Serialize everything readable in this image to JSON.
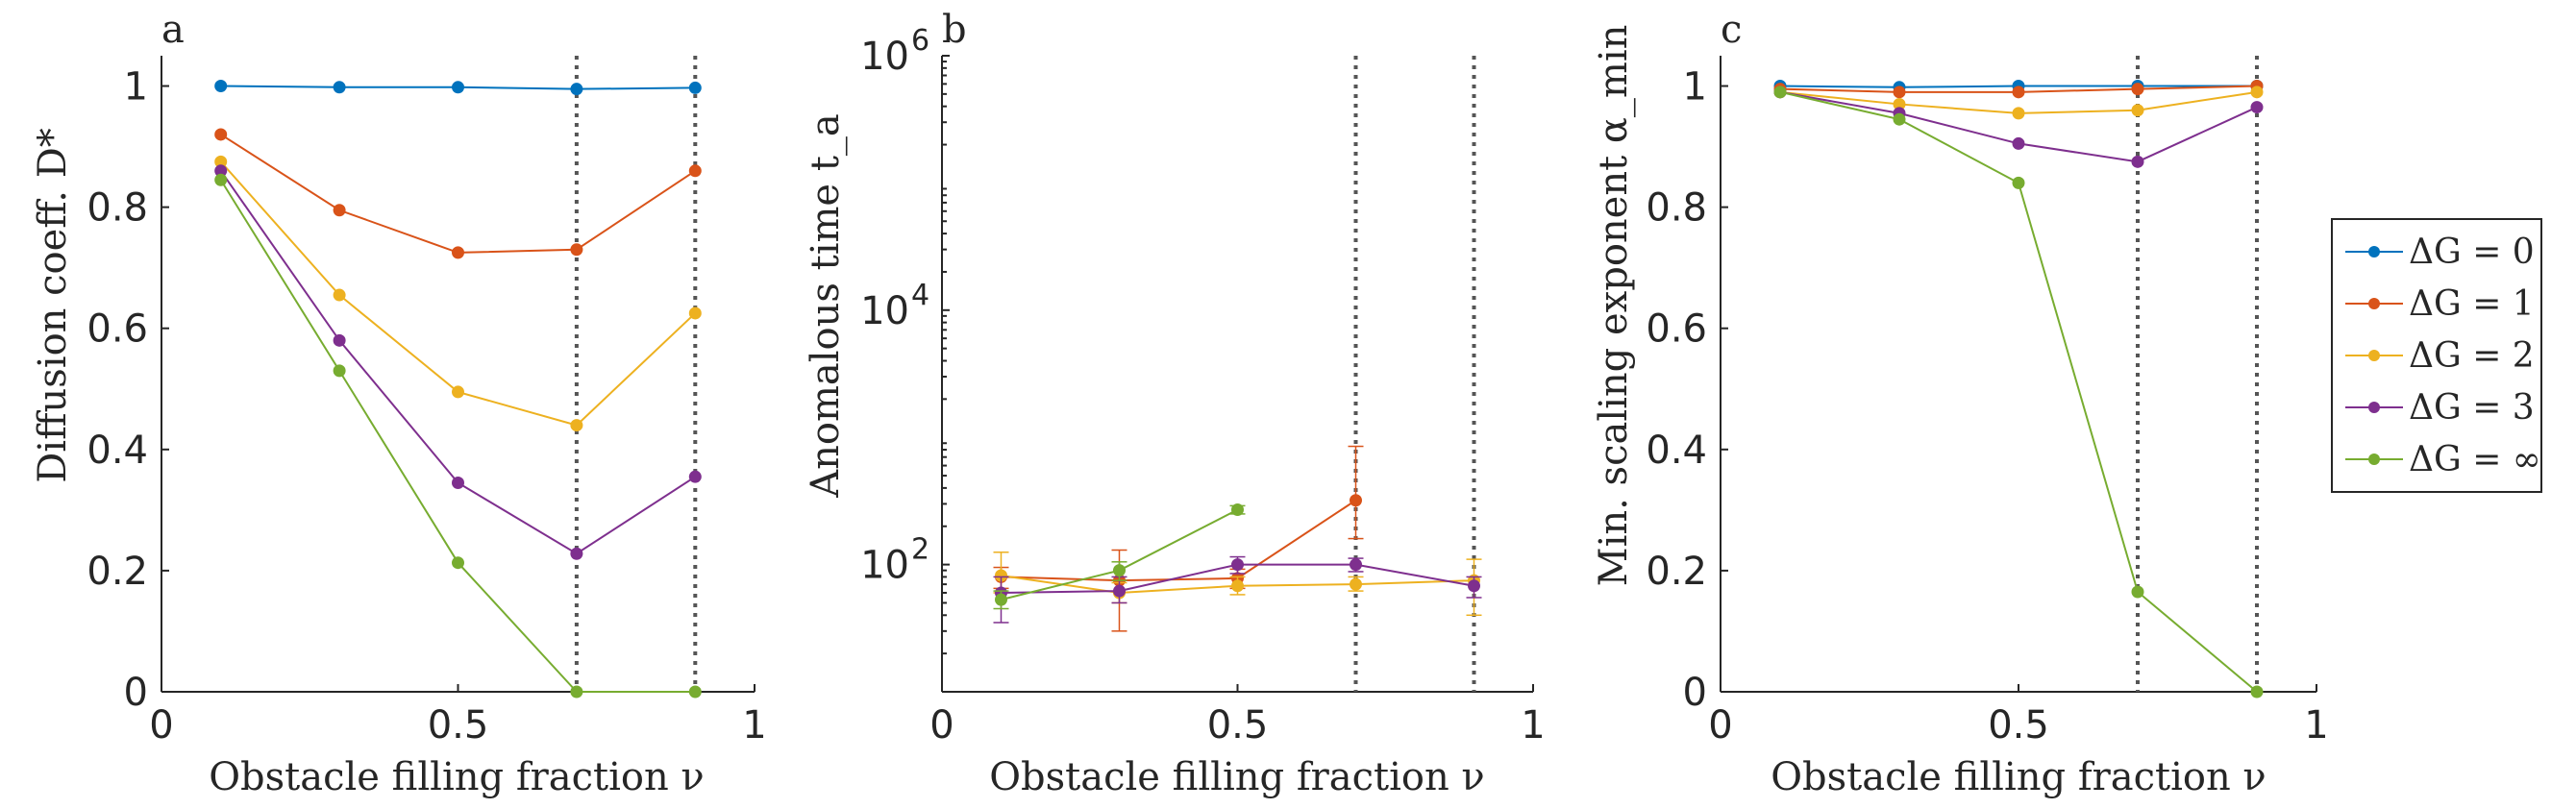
{
  "colors": {
    "dg0": "#0072BD",
    "dg1": "#D95319",
    "dg2": "#EDB120",
    "dg3": "#7E2F8E",
    "dginf": "#77AC30",
    "axis": "#262626",
    "vline": "#555555"
  },
  "legend": {
    "entries": [
      "ΔG = 0",
      "ΔG = 1",
      "ΔG = 2",
      "ΔG = 3",
      "ΔG = ∞"
    ]
  },
  "chart_data": [
    {
      "panel": "a",
      "type": "line",
      "xlabel": "Obstacle filling fraction ν",
      "ylabel": "Diffusion coeff. D*",
      "xlim": [
        0,
        1
      ],
      "ylim": [
        0,
        1.05
      ],
      "yscale": "linear",
      "xticks": [
        0,
        0.5,
        1
      ],
      "xtick_labels": [
        "0",
        "0.5",
        "1"
      ],
      "yticks": [
        0,
        0.2,
        0.4,
        0.6,
        0.8,
        1
      ],
      "ytick_labels": [
        "0",
        "0.2",
        "0.4",
        "0.6",
        "0.8",
        "1"
      ],
      "vlines": [
        0.7,
        0.9
      ],
      "x": [
        0.1,
        0.3,
        0.5,
        0.7,
        0.9
      ],
      "series": [
        {
          "name": "ΔG = 0",
          "color_key": "dg0",
          "values": [
            1.0,
            0.998,
            0.998,
            0.995,
            0.997
          ]
        },
        {
          "name": "ΔG = 1",
          "color_key": "dg1",
          "values": [
            0.92,
            0.795,
            0.725,
            0.73,
            0.86
          ]
        },
        {
          "name": "ΔG = 2",
          "color_key": "dg2",
          "values": [
            0.875,
            0.655,
            0.495,
            0.44,
            0.625
          ]
        },
        {
          "name": "ΔG = 3",
          "color_key": "dg3",
          "values": [
            0.86,
            0.58,
            0.345,
            0.228,
            0.355
          ]
        },
        {
          "name": "ΔG = ∞",
          "color_key": "dginf",
          "values": [
            0.845,
            0.53,
            0.213,
            0.0,
            0.0
          ]
        }
      ]
    },
    {
      "panel": "b",
      "type": "line",
      "xlabel": "Obstacle filling fraction ν",
      "ylabel": "Anomalous time t_a",
      "xlim": [
        0,
        1
      ],
      "ylim": [
        10,
        1000000
      ],
      "yscale": "log",
      "xticks": [
        0,
        0.5,
        1
      ],
      "xtick_labels": [
        "0",
        "0.5",
        "1"
      ],
      "yticks": [
        100,
        10000,
        1000000
      ],
      "ytick_labels": [
        "10",
        "10",
        "10"
      ],
      "ytick_exponents": [
        "2",
        "4",
        "6"
      ],
      "vlines": [
        0.7,
        0.9
      ],
      "series": [
        {
          "name": "ΔG = 0",
          "color_key": "dg0",
          "x": [],
          "values": [],
          "err_lo": [],
          "err_hi": []
        },
        {
          "name": "ΔG = 1",
          "color_key": "dg1",
          "x": [
            0.1,
            0.3,
            0.5,
            0.7
          ],
          "values": [
            80,
            75,
            78,
            320
          ],
          "err_lo": [
            65,
            30,
            65,
            160
          ],
          "err_hi": [
            95,
            130,
            92,
            850
          ]
        },
        {
          "name": "ΔG = 2",
          "color_key": "dg2",
          "x": [
            0.1,
            0.3,
            0.5,
            0.7,
            0.9
          ],
          "values": [
            82,
            60,
            68,
            70,
            75
          ],
          "err_lo": [
            60,
            50,
            58,
            62,
            40
          ],
          "err_hi": [
            125,
            72,
            80,
            80,
            110
          ]
        },
        {
          "name": "ΔG = 3",
          "color_key": "dg3",
          "x": [
            0.1,
            0.3,
            0.5,
            0.7,
            0.9
          ],
          "values": [
            60,
            62,
            100,
            100,
            68
          ],
          "err_lo": [
            35,
            50,
            85,
            88,
            55
          ],
          "err_hi": [
            80,
            80,
            115,
            112,
            80
          ]
        },
        {
          "name": "ΔG = ∞",
          "color_key": "dginf",
          "x": [
            0.1,
            0.3,
            0.5
          ],
          "values": [
            53,
            90,
            270
          ],
          "err_lo": [
            45,
            75,
            250
          ],
          "err_hi": [
            62,
            105,
            290
          ]
        }
      ]
    },
    {
      "panel": "c",
      "type": "line",
      "xlabel": "Obstacle filling fraction ν",
      "ylabel": "Min. scaling exponent α_min",
      "xlim": [
        0,
        1
      ],
      "ylim": [
        0,
        1.05
      ],
      "yscale": "linear",
      "xticks": [
        0,
        0.5,
        1
      ],
      "xtick_labels": [
        "0",
        "0.5",
        "1"
      ],
      "yticks": [
        0,
        0.2,
        0.4,
        0.6,
        0.8,
        1
      ],
      "ytick_labels": [
        "0",
        "0.2",
        "0.4",
        "0.6",
        "0.8",
        "1"
      ],
      "vlines": [
        0.7,
        0.9
      ],
      "x": [
        0.1,
        0.3,
        0.5,
        0.7,
        0.9
      ],
      "series": [
        {
          "name": "ΔG = 0",
          "color_key": "dg0",
          "values": [
            1.0,
            0.998,
            1.0,
            1.0,
            1.0
          ]
        },
        {
          "name": "ΔG = 1",
          "color_key": "dg1",
          "values": [
            0.995,
            0.99,
            0.99,
            0.995,
            1.0
          ]
        },
        {
          "name": "ΔG = 2",
          "color_key": "dg2",
          "values": [
            0.99,
            0.97,
            0.955,
            0.96,
            0.99
          ]
        },
        {
          "name": "ΔG = 3",
          "color_key": "dg3",
          "values": [
            0.99,
            0.955,
            0.905,
            0.875,
            0.965
          ]
        },
        {
          "name": "ΔG = ∞",
          "color_key": "dginf",
          "values": [
            0.99,
            0.945,
            0.84,
            0.165,
            0.0
          ]
        }
      ]
    }
  ]
}
